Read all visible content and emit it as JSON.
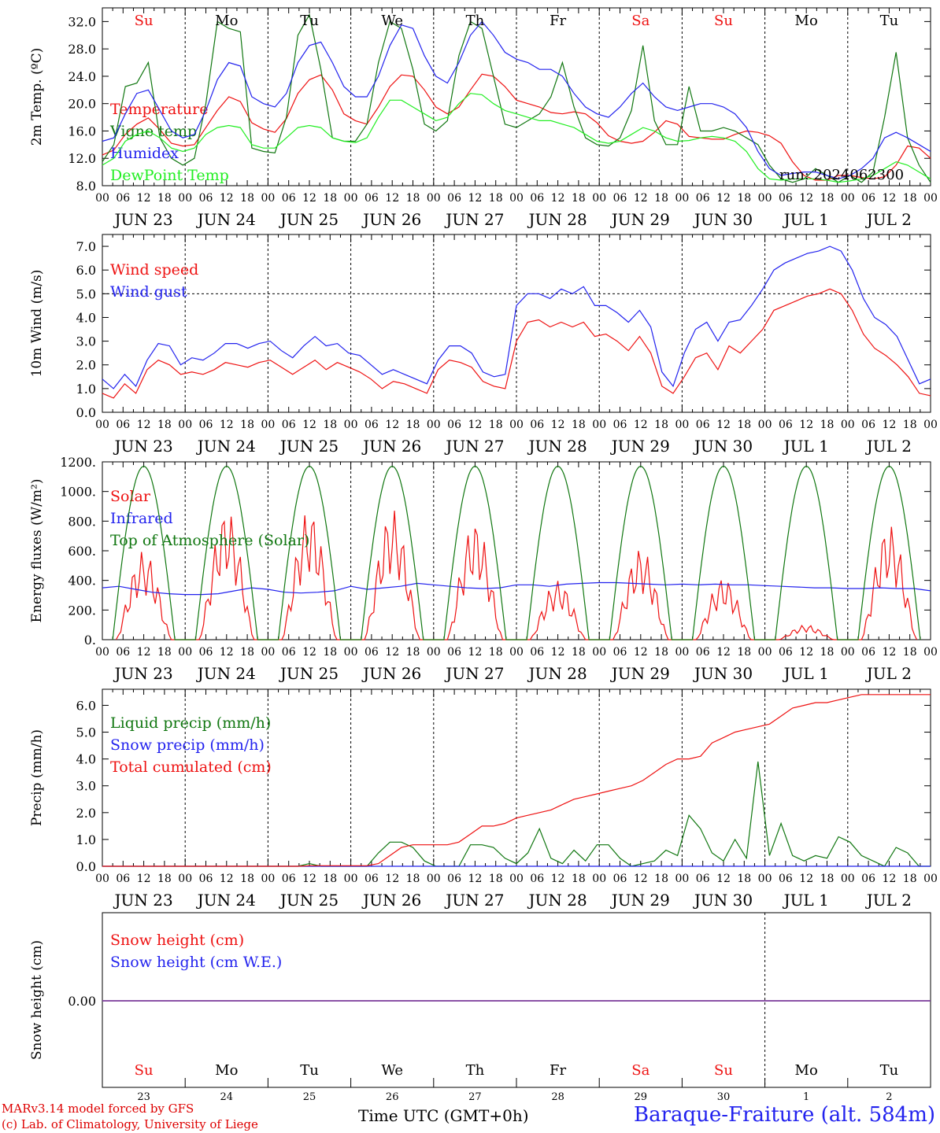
{
  "chart_data": [
    {
      "type": "line",
      "ylabel": "2m Temp. (ºC)",
      "ylim": [
        8,
        34
      ],
      "yticks": [
        "8.0",
        "12.0",
        "16.0",
        "20.0",
        "24.0",
        "28.0",
        "32.0"
      ],
      "ytick_values": [
        8,
        12,
        16,
        20,
        24,
        28,
        32
      ],
      "annotation": "run: 2024062300",
      "series": [
        {
          "name": "Temperature",
          "color": "#ee1111",
          "values": [
            12.5,
            13.2,
            15.5,
            17,
            17.9,
            16.2,
            14.2,
            13.8,
            14.0,
            16.5,
            19.0,
            21.0,
            20.3,
            17.2,
            16.3,
            15.8,
            17.8,
            21.5,
            23.5,
            24.2,
            22,
            18.5,
            17.5,
            17.0,
            19.5,
            22.5,
            24.2,
            24.0,
            22,
            19.5,
            18.5,
            19.5,
            22,
            24.3,
            24,
            22.5,
            20.5,
            20.0,
            19.5,
            18.7,
            18.5,
            18.8,
            18.5,
            17.2,
            15.3,
            14.5,
            14.2,
            14.5,
            15.8,
            17.5,
            17.0,
            15.2,
            15.0,
            14.8,
            14.8,
            15.5,
            16.0,
            15.8,
            15.3,
            14.2,
            11.5,
            9.5,
            8.8,
            8.8,
            9.5,
            9.5,
            9.2,
            9.0,
            9.3,
            11.0,
            13.8,
            13.5,
            12.0
          ]
        },
        {
          "name": "Vigne temp",
          "color": "#117711",
          "values": [
            11.5,
            14.0,
            22.5,
            23.0,
            26.0,
            15.0,
            12.0,
            11.0,
            12.0,
            20.0,
            32.0,
            31.0,
            30.5,
            13.5,
            13.0,
            12.8,
            18.0,
            30.0,
            33.0,
            25.0,
            15.0,
            14.5,
            14.5,
            17.0,
            26.0,
            32.0,
            31.0,
            25.0,
            17.0,
            16.0,
            17.5,
            27.0,
            32.0,
            31.0,
            24.0,
            17.0,
            16.5,
            17.5,
            18.5,
            21.0,
            26.0,
            19.5,
            15.0,
            14.0,
            13.8,
            15.0,
            19.0,
            28.5,
            17.5,
            14.0,
            14.0,
            22.5,
            16.0,
            16.0,
            16.5,
            16.0,
            15.0,
            14.0,
            11.0,
            9.0,
            8.5,
            9.0,
            10.5,
            9.5,
            8.5,
            9.5,
            8.5,
            10.0,
            18.0,
            27.5,
            15.0,
            11.0,
            8.5
          ]
        },
        {
          "name": "Humidex",
          "color": "#2222ee",
          "values": [
            14.5,
            15.0,
            18.5,
            21.5,
            22.0,
            19.0,
            16.0,
            15.0,
            15.5,
            19.0,
            23.5,
            26.0,
            25.5,
            21.0,
            20.0,
            19.5,
            21.5,
            26.0,
            28.5,
            29.0,
            26.0,
            22.5,
            21.0,
            21.0,
            24.0,
            28.5,
            31.5,
            31.0,
            27.0,
            24.0,
            23.0,
            26.0,
            30.0,
            32.0,
            30.0,
            27.5,
            26.5,
            26.0,
            25.0,
            25.0,
            24.0,
            21.5,
            19.5,
            18.5,
            18.0,
            19.5,
            21.5,
            23.0,
            21.0,
            19.5,
            19.0,
            19.5,
            20.0,
            20.0,
            19.5,
            18.5,
            16.5,
            13.0,
            10.5,
            9.5,
            9.8,
            10.0,
            10.0,
            9.5,
            9.0,
            9.5,
            10.5,
            12.0,
            15.0,
            15.8,
            15.0,
            14.0,
            13.0
          ]
        },
        {
          "name": "DewPoint Temp",
          "color": "#22ee22",
          "values": [
            11.0,
            12.0,
            14.5,
            15.5,
            16.0,
            15.0,
            13.5,
            13.0,
            13.5,
            15.5,
            16.5,
            16.8,
            16.5,
            14.0,
            13.5,
            13.5,
            15.0,
            16.5,
            16.8,
            16.5,
            15.0,
            14.5,
            14.3,
            15.0,
            18.0,
            20.5,
            20.5,
            19.5,
            18.5,
            17.5,
            18.0,
            20.0,
            21.5,
            21.3,
            20.0,
            19.0,
            18.5,
            18.0,
            17.5,
            17.5,
            17.0,
            16.5,
            15.5,
            14.5,
            14.2,
            14.5,
            15.5,
            16.5,
            16.0,
            15.0,
            14.5,
            14.6,
            15.0,
            15.2,
            15.0,
            14.5,
            13.0,
            10.5,
            9.0,
            8.8,
            9.0,
            9.0,
            9.0,
            8.8,
            8.5,
            8.7,
            9.0,
            9.5,
            10.5,
            11.5,
            11.0,
            10.0,
            9.0
          ]
        }
      ]
    },
    {
      "type": "line",
      "ylabel": "10m Wind (m/s)",
      "ylim": [
        0,
        7.5
      ],
      "yticks": [
        "0.0",
        "1.0",
        "2.0",
        "3.0",
        "4.0",
        "5.0",
        "6.0",
        "7.0"
      ],
      "ytick_values": [
        0,
        1,
        2,
        3,
        4,
        5,
        6,
        7
      ],
      "reference_line": 5.0,
      "series": [
        {
          "name": "Wind speed",
          "color": "#ee1111",
          "values": [
            0.8,
            0.6,
            1.2,
            0.8,
            1.8,
            2.2,
            2.0,
            1.6,
            1.7,
            1.6,
            1.8,
            2.1,
            2.0,
            1.9,
            2.1,
            2.2,
            1.9,
            1.6,
            1.9,
            2.2,
            1.8,
            2.1,
            1.9,
            1.7,
            1.4,
            1.0,
            1.3,
            1.2,
            1.0,
            0.8,
            1.8,
            2.2,
            2.1,
            1.9,
            1.3,
            1.1,
            1.0,
            3.0,
            3.8,
            3.9,
            3.6,
            3.8,
            3.6,
            3.8,
            3.2,
            3.3,
            3.0,
            2.6,
            3.2,
            2.5,
            1.1,
            0.8,
            1.5,
            2.3,
            2.5,
            1.8,
            2.8,
            2.5,
            3.0,
            3.5,
            4.3,
            4.5,
            4.7,
            4.9,
            5.0,
            5.2,
            5.0,
            4.3,
            3.3,
            2.7,
            2.4,
            2.0,
            1.5,
            0.8,
            0.7
          ]
        },
        {
          "name": "Wind gust",
          "color": "#2222ee",
          "values": [
            1.4,
            1.0,
            1.6,
            1.1,
            2.2,
            2.9,
            2.8,
            2.0,
            2.3,
            2.2,
            2.5,
            2.9,
            2.9,
            2.7,
            2.9,
            3.0,
            2.6,
            2.3,
            2.8,
            3.2,
            2.8,
            2.9,
            2.5,
            2.4,
            2.0,
            1.6,
            1.8,
            1.6,
            1.4,
            1.2,
            2.2,
            2.8,
            2.8,
            2.5,
            1.7,
            1.5,
            1.6,
            4.5,
            5.0,
            5.0,
            4.8,
            5.2,
            5.0,
            5.3,
            4.5,
            4.5,
            4.2,
            3.8,
            4.3,
            3.6,
            1.7,
            1.1,
            2.5,
            3.5,
            3.8,
            3.0,
            3.8,
            3.9,
            4.5,
            5.2,
            6.0,
            6.3,
            6.5,
            6.7,
            6.8,
            7.0,
            6.8,
            6.0,
            4.8,
            4.0,
            3.7,
            3.2,
            2.2,
            1.2,
            1.4
          ]
        }
      ]
    },
    {
      "type": "line",
      "ylabel": "Energy fluxes (W/m²)",
      "ylim": [
        0,
        1200
      ],
      "yticks": [
        "0.",
        "200.",
        "400.",
        "600.",
        "800.",
        "1000.",
        "1200."
      ],
      "ytick_values": [
        0,
        200,
        400,
        600,
        800,
        1000,
        1200
      ],
      "series": [
        {
          "name": "Solar",
          "color": "#ee1111",
          "peaks": [
            600,
            880,
            880,
            880,
            800,
            400,
            620,
            420,
            100,
            780
          ]
        },
        {
          "name": "Infrared",
          "color": "#2222ee",
          "values": [
            350,
            360,
            340,
            320,
            310,
            305,
            305,
            310,
            330,
            350,
            340,
            320,
            315,
            320,
            330,
            360,
            340,
            350,
            360,
            380,
            370,
            360,
            350,
            345,
            350,
            370,
            370,
            360,
            375,
            380,
            385,
            385,
            380,
            375,
            370,
            375,
            370,
            375,
            370,
            370,
            365,
            360,
            355,
            350,
            350,
            345,
            345,
            350,
            345,
            345,
            330
          ]
        },
        {
          "name": "Top of Atmosphere (Solar)",
          "color": "#117711",
          "peak": 1170
        }
      ]
    },
    {
      "type": "line",
      "ylabel": "Precip (mm/h)",
      "ylim": [
        0,
        6.6
      ],
      "yticks": [
        "0.0",
        "1.0",
        "2.0",
        "3.0",
        "4.0",
        "5.0",
        "6.0"
      ],
      "ytick_values": [
        0,
        1,
        2,
        3,
        4,
        5,
        6
      ],
      "series": [
        {
          "name": "Liquid precip (mm/h)",
          "color": "#117711",
          "values": [
            0,
            0,
            0,
            0,
            0,
            0,
            0,
            0,
            0,
            0,
            0,
            0,
            0,
            0,
            0,
            0,
            0,
            0,
            0.1,
            0,
            0,
            0,
            0,
            0,
            0.5,
            0.9,
            0.9,
            0.7,
            0.2,
            0,
            0,
            0,
            0.8,
            0.8,
            0.7,
            0.3,
            0.1,
            0.5,
            1.4,
            0.3,
            0.1,
            0.6,
            0.2,
            0.8,
            0.8,
            0.3,
            0,
            0.1,
            0.2,
            0.6,
            0.4,
            1.9,
            1.4,
            0.5,
            0.2,
            1.0,
            0.3,
            3.9,
            0.4,
            1.6,
            0.4,
            0.2,
            0.4,
            0.3,
            1.1,
            0.9,
            0.4,
            0.2,
            0,
            0.7,
            0.5,
            0,
            0
          ]
        },
        {
          "name": "Snow precip (mm/h)",
          "color": "#2222ee",
          "values": [
            0,
            0
          ]
        },
        {
          "name": "Total cumulated (cm)",
          "color": "#ee1111",
          "values": [
            0,
            0,
            0,
            0,
            0,
            0,
            0,
            0,
            0,
            0,
            0,
            0,
            0,
            0,
            0,
            0,
            0,
            0,
            0.02,
            0.02,
            0.02,
            0.02,
            0.02,
            0.02,
            0.1,
            0.4,
            0.7,
            0.8,
            0.8,
            0.8,
            0.8,
            0.9,
            1.2,
            1.5,
            1.5,
            1.6,
            1.8,
            1.9,
            2.0,
            2.1,
            2.3,
            2.5,
            2.6,
            2.7,
            2.8,
            2.9,
            3.0,
            3.2,
            3.5,
            3.8,
            4.0,
            4.0,
            4.1,
            4.6,
            4.8,
            5.0,
            5.1,
            5.2,
            5.3,
            5.6,
            5.9,
            6.0,
            6.1,
            6.1,
            6.2,
            6.3,
            6.4,
            6.4,
            6.4,
            6.4,
            6.4,
            6.4,
            6.4
          ]
        }
      ]
    },
    {
      "type": "line",
      "ylabel": "Snow height (cm)",
      "yticks": [
        "0.00"
      ],
      "series": [
        {
          "name": "Snow height (cm)",
          "color": "#ee1111",
          "values": [
            0,
            0
          ]
        },
        {
          "name": "Snow height (cm W.E.)",
          "color": "#2222ee",
          "values": [
            0,
            0
          ]
        }
      ]
    }
  ],
  "days": {
    "top": [
      {
        "label": "Su",
        "color": "#ee1111"
      },
      {
        "label": "Mo",
        "color": "#000000"
      },
      {
        "label": "Tu",
        "color": "#000000"
      },
      {
        "label": "We",
        "color": "#000000"
      },
      {
        "label": "Th",
        "color": "#000000"
      },
      {
        "label": "Fr",
        "color": "#000000"
      },
      {
        "label": "Sa",
        "color": "#ee1111"
      },
      {
        "label": "Su",
        "color": "#ee1111"
      },
      {
        "label": "Mo",
        "color": "#000000"
      },
      {
        "label": "Tu",
        "color": "#000000"
      }
    ],
    "dates": [
      "JUN 23",
      "JUN 24",
      "JUN 25",
      "JUN 26",
      "JUN 27",
      "JUN 28",
      "JUN 29",
      "JUN 30",
      "JUL  1",
      "JUL  2"
    ],
    "hours": [
      "00",
      "06",
      "12",
      "18"
    ],
    "final_hour": "00",
    "bottom_numbers": [
      "23",
      "24",
      "25",
      "26",
      "27",
      "28",
      "29",
      "30",
      "1",
      "2"
    ]
  },
  "footer": {
    "model_line1": "MARv3.14 model forced by GFS",
    "model_line2": "(c) Lab. of Climatology, University of Liege",
    "time_label": "Time UTC (GMT+0h)",
    "station": "Baraque-Fraiture (alt. 584m)"
  }
}
